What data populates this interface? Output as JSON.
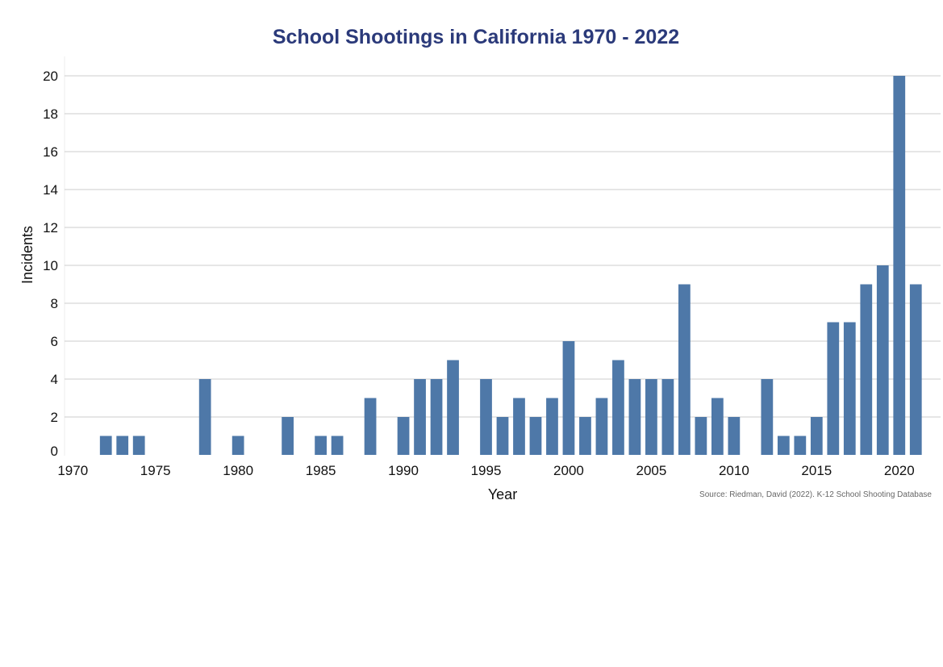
{
  "chart_data": {
    "type": "bar",
    "title": "School Shootings in California 1970 - 2022",
    "xlabel": "Year",
    "ylabel": "Incidents",
    "source": "Source: Riedman, David (2022). K-12 School Shooting Database",
    "x": [
      1970,
      1971,
      1972,
      1973,
      1974,
      1975,
      1976,
      1977,
      1978,
      1979,
      1980,
      1981,
      1982,
      1983,
      1984,
      1985,
      1986,
      1987,
      1988,
      1989,
      1990,
      1991,
      1992,
      1993,
      1994,
      1995,
      1996,
      1997,
      1998,
      1999,
      2000,
      2001,
      2002,
      2003,
      2004,
      2005,
      2006,
      2007,
      2008,
      2009,
      2010,
      2011,
      2012,
      2013,
      2014,
      2015,
      2016,
      2017,
      2018,
      2019,
      2020,
      2021,
      2022
    ],
    "values": [
      0,
      0,
      1,
      1,
      1,
      0,
      0,
      0,
      4,
      0,
      1,
      0,
      0,
      2,
      0,
      1,
      1,
      0,
      3,
      0,
      2,
      4,
      4,
      5,
      0,
      4,
      2,
      3,
      2,
      3,
      6,
      2,
      3,
      5,
      4,
      4,
      4,
      9,
      2,
      3,
      2,
      0,
      4,
      1,
      1,
      2,
      7,
      7,
      9,
      10,
      20,
      9,
      0
    ],
    "xticks": [
      1970,
      1975,
      1980,
      1985,
      1990,
      1995,
      2000,
      2005,
      2010,
      2015,
      2020
    ],
    "yticks": [
      0,
      2,
      4,
      6,
      8,
      10,
      12,
      14,
      16,
      18,
      20
    ],
    "ylim": [
      0,
      21
    ],
    "xlim": [
      1969.5,
      2022.5
    ],
    "grid": "horizontal",
    "legend": "none"
  },
  "colors": {
    "bar": "#4e78a8",
    "title": "#2b3a7a",
    "grid": "#cccccc"
  }
}
